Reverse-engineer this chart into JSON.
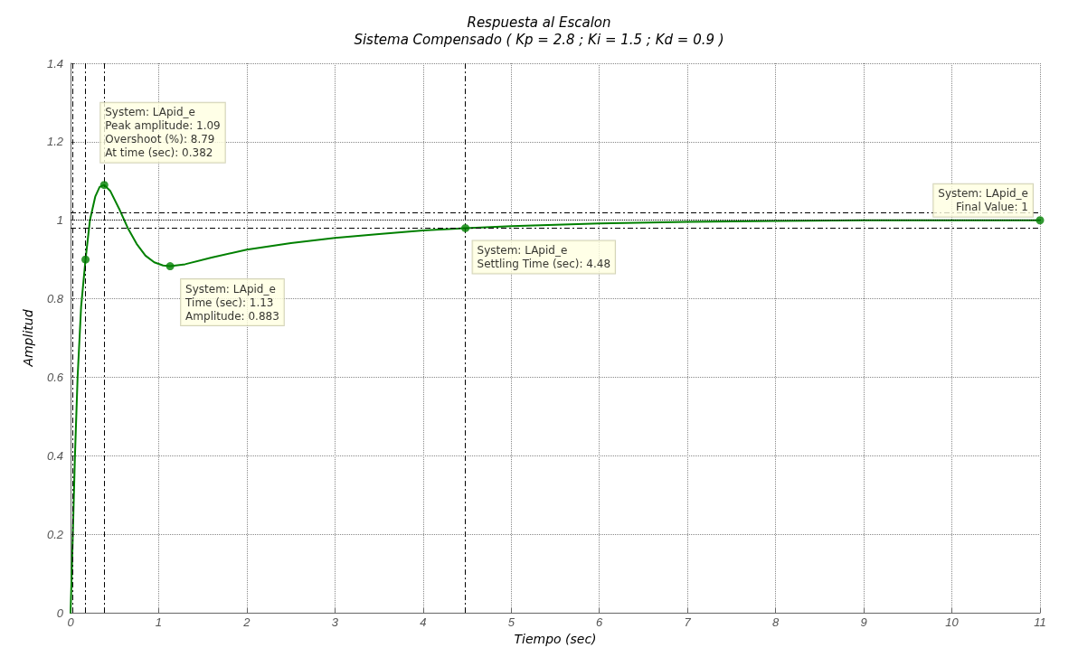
{
  "chart_data": {
    "type": "line",
    "title": "Respuesta al Escalon",
    "subtitle": "Sistema Compensado ( Kp = 2.8 ; Ki = 1.5 ; Kd = 0.9 )",
    "xlabel": "Tiempo (sec)",
    "ylabel": "Amplitud",
    "xlim": [
      0,
      11
    ],
    "xticks": [
      0,
      1,
      2,
      3,
      4,
      5,
      6,
      7,
      8,
      9,
      10,
      11
    ],
    "ylim": [
      0,
      1.4
    ],
    "yticks": [
      0,
      0.2,
      0.4,
      0.6,
      0.8,
      1,
      1.2,
      1.4
    ],
    "grid": true,
    "marker": "none",
    "line_style": "solid",
    "series": [
      {
        "color": "#008000",
        "x": [
          0,
          0.02,
          0.05,
          0.08,
          0.12,
          0.17,
          0.22,
          0.28,
          0.33,
          0.382,
          0.45,
          0.55,
          0.65,
          0.75,
          0.85,
          0.95,
          1.05,
          1.13,
          1.3,
          1.6,
          2,
          2.5,
          3,
          3.5,
          4,
          4.48,
          5,
          6,
          7,
          8,
          9,
          10,
          11
        ],
        "values": [
          0,
          0.15,
          0.4,
          0.6,
          0.78,
          0.9,
          1.0,
          1.06,
          1.085,
          1.09,
          1.075,
          1.03,
          0.98,
          0.94,
          0.91,
          0.893,
          0.885,
          0.883,
          0.888,
          0.905,
          0.925,
          0.942,
          0.955,
          0.965,
          0.974,
          0.98,
          0.985,
          0.992,
          0.996,
          0.998,
          1.0,
          1.0,
          1.0
        ]
      },
      {
        "type": "scatter",
        "color": "#008000",
        "marker": "circle",
        "x": [
          0.17,
          0.382,
          1.13,
          4.48,
          11
        ],
        "values": [
          0.9,
          1.09,
          0.883,
          0.98,
          1
        ]
      }
    ],
    "ref_lines": [
      {
        "axis": "y",
        "value": 1.02,
        "line_style": "dashed",
        "color": "#000000"
      },
      {
        "axis": "y",
        "value": 1,
        "line_style": "dotted",
        "color": "#000000"
      },
      {
        "axis": "y",
        "value": 0.98,
        "line_style": "dashed",
        "color": "#000000"
      },
      {
        "axis": "x",
        "value": 0.02,
        "line_style": "dashed",
        "color": "#000000"
      },
      {
        "axis": "x",
        "value": 0.17,
        "line_style": "dashed",
        "color": "#000000"
      },
      {
        "axis": "x",
        "value": 0.382,
        "line_style": "dashed",
        "color": "#000000"
      },
      {
        "axis": "x",
        "value": 4.48,
        "line_style": "dashed",
        "color": "#000000"
      }
    ],
    "annotations": [
      {
        "text": "System: LApid_e\nPeak amplitude: 1.09\nOvershoot (%): 8.79\nAt time (sec): 0.382",
        "x": 0.382,
        "y": 1.09
      },
      {
        "text": "System: LApid_e\nTime (sec): 1.13\nAmplitude: 0.883",
        "x": 1.13,
        "y": 0.883
      },
      {
        "text": "System: LApid_e\nSettling Time (sec): 4.48",
        "x": 4.48,
        "y": 0.98
      },
      {
        "text": "System: LApid_e\nFinal Value: 1",
        "x": 11,
        "y": 1
      }
    ]
  }
}
